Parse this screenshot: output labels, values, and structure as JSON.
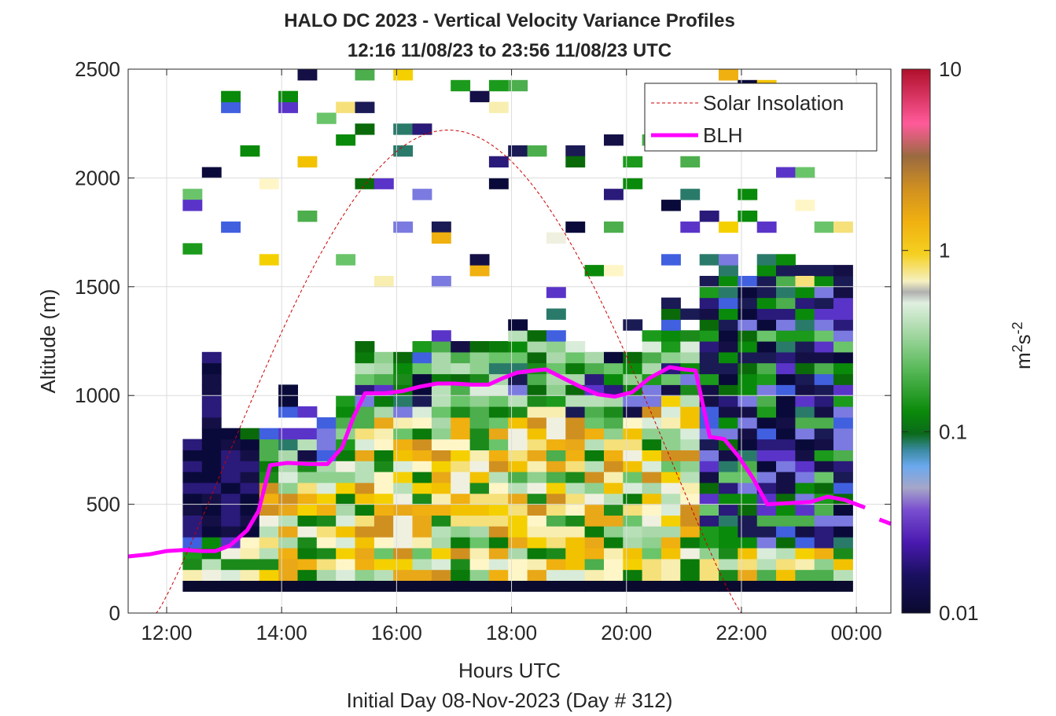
{
  "chart_data": {
    "type": "heatmap",
    "title": "HALO DC 2023 - Vertical Velocity Variance Profiles",
    "subtitle": "12:16 11/08/23 to 23:56 11/08/23  UTC",
    "xlabel": "Hours UTC",
    "xlabel2": "Initial Day 08-Nov-2023 (Day # 312)",
    "ylabel": "Altitude (m)",
    "xlim_hours": [
      11.33,
      24.6
    ],
    "ylim": [
      0,
      2500
    ],
    "x_ticks": [
      {
        "value": 12,
        "label": "12:00"
      },
      {
        "value": 14,
        "label": "14:00"
      },
      {
        "value": 16,
        "label": "16:00"
      },
      {
        "value": 18,
        "label": "18:00"
      },
      {
        "value": 20,
        "label": "20:00"
      },
      {
        "value": 22,
        "label": "22:00"
      },
      {
        "value": 24,
        "label": "00:00"
      }
    ],
    "y_ticks": [
      0,
      500,
      1000,
      1500,
      2000,
      2500
    ],
    "grid": true,
    "colorbar": {
      "label_base": "m",
      "label_sup1": "2",
      "label_mid": "s",
      "label_sup2": "-2",
      "scale": "log",
      "range": [
        0.01,
        10
      ],
      "ticks": [
        {
          "value": 0.01,
          "label": "0.01"
        },
        {
          "value": 0.1,
          "label": "0.1"
        },
        {
          "value": 1,
          "label": "1"
        },
        {
          "value": 10,
          "label": "10"
        }
      ]
    },
    "legend": {
      "placement": "top-right",
      "entries": [
        {
          "label": "Solar Insolation",
          "color": "#cc0000",
          "style": "dashed"
        },
        {
          "label": "BLH",
          "color": "#ff00ff",
          "style": "solid"
        }
      ]
    },
    "blh_series": {
      "name": "BLH",
      "x": [
        11.33,
        11.7,
        12.0,
        12.3,
        12.6,
        12.85,
        13.1,
        13.4,
        13.6,
        13.8,
        14.1,
        14.5,
        14.8,
        15.05,
        15.25,
        15.45,
        15.8,
        16.1,
        16.4,
        16.7,
        17.0,
        17.3,
        17.6,
        17.85,
        18.1,
        18.4,
        18.6,
        18.9,
        19.2,
        19.5,
        19.8,
        20.1,
        20.4,
        20.75,
        21.0,
        21.2,
        21.45,
        21.7,
        21.95,
        22.2,
        22.45,
        22.8,
        23.2,
        23.5,
        23.8,
        24.0,
        24.15
      ],
      "y": [
        260,
        270,
        285,
        290,
        285,
        285,
        310,
        380,
        470,
        680,
        690,
        685,
        685,
        760,
        900,
        1010,
        1010,
        1020,
        1040,
        1055,
        1055,
        1050,
        1050,
        1080,
        1105,
        1115,
        1120,
        1080,
        1040,
        1005,
        995,
        1015,
        1080,
        1130,
        1120,
        1115,
        810,
        800,
        720,
        620,
        500,
        505,
        510,
        535,
        520,
        500,
        485
      ],
      "extra_segment_x": [
        24.4,
        24.6
      ],
      "extra_segment_y": [
        430,
        410
      ]
    },
    "solar_series": {
      "name": "Solar Insolation",
      "type": "line",
      "peak_time": 16.9,
      "peak_value": 2220,
      "x_start": 11.33,
      "x_rise": 11.82,
      "x_set": 22.0,
      "x_end": 24.6
    },
    "heatmap": {
      "time_step_hours": 0.333,
      "x_start_hours": 12.28,
      "n_columns": 35,
      "altitude_step_m": 50,
      "note": ""
    }
  }
}
